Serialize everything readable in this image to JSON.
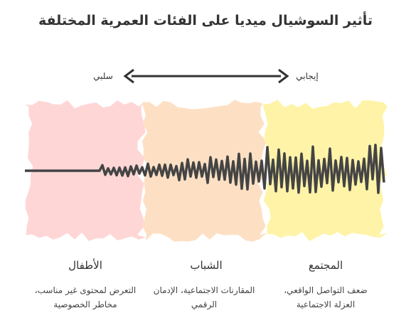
{
  "header": {
    "title": "تأثير السوشيال ميديا على الفئات العمرية المختلفة"
  },
  "scale": {
    "negative": "سلبي",
    "positive": "إيجابي"
  },
  "groups": [
    {
      "label": "الأطفال",
      "description": "التعرض لمحتوى غير مناسب، مخاطر الخصوصية"
    },
    {
      "label": "الشباب",
      "description": "المقارنات الاجتماعية، الإدمان الرقمي"
    },
    {
      "label": "المجتمع",
      "description": "ضعف التواصل الواقعي، العزلة الاجتماعية"
    }
  ]
}
